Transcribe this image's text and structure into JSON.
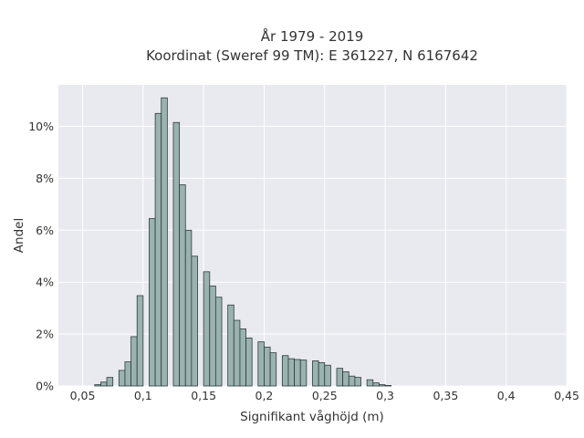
{
  "chart_data": {
    "type": "bar",
    "title_lines": [
      "År 1979 - 2019",
      "Koordinat (Sweref 99 TM): E 361227, N 6167642"
    ],
    "xlabel": "Signifikant våghöjd (m)",
    "ylabel": "Andel",
    "xlim": [
      0.03,
      0.45
    ],
    "ylim": [
      0,
      11.6
    ],
    "bin_width": 0.005,
    "x_ticks": [
      0.05,
      0.1,
      0.15,
      0.2,
      0.25,
      0.3,
      0.35,
      0.4,
      0.45
    ],
    "x_tick_labels": [
      "0,05",
      "0,1",
      "0,15",
      "0,2",
      "0,25",
      "0,3",
      "0,35",
      "0,4",
      "0,45"
    ],
    "y_ticks": [
      0,
      2,
      4,
      6,
      8,
      10
    ],
    "y_tick_labels": [
      "0%",
      "2%",
      "4%",
      "6%",
      "8%",
      "10%"
    ],
    "grid": true,
    "bar_color": "#9ab3b1",
    "bar_edge_color": "#2e3b3a",
    "background_color": "#e9e9f0",
    "bins": [
      {
        "x": 0.0625,
        "value": 0.05
      },
      {
        "x": 0.0675,
        "value": 0.15
      },
      {
        "x": 0.0725,
        "value": 0.33
      },
      {
        "x": 0.0825,
        "value": 0.6
      },
      {
        "x": 0.0875,
        "value": 0.93
      },
      {
        "x": 0.0925,
        "value": 1.9
      },
      {
        "x": 0.0975,
        "value": 3.48
      },
      {
        "x": 0.1075,
        "value": 6.45
      },
      {
        "x": 0.1125,
        "value": 10.5
      },
      {
        "x": 0.1175,
        "value": 11.1
      },
      {
        "x": 0.1275,
        "value": 10.15
      },
      {
        "x": 0.1325,
        "value": 7.75
      },
      {
        "x": 0.1375,
        "value": 6.0
      },
      {
        "x": 0.1425,
        "value": 5.0
      },
      {
        "x": 0.1525,
        "value": 4.4
      },
      {
        "x": 0.1575,
        "value": 3.85
      },
      {
        "x": 0.1625,
        "value": 3.42
      },
      {
        "x": 0.1725,
        "value": 3.12
      },
      {
        "x": 0.1775,
        "value": 2.53
      },
      {
        "x": 0.1825,
        "value": 2.2
      },
      {
        "x": 0.1875,
        "value": 1.85
      },
      {
        "x": 0.1975,
        "value": 1.7
      },
      {
        "x": 0.2025,
        "value": 1.5
      },
      {
        "x": 0.2075,
        "value": 1.28
      },
      {
        "x": 0.2175,
        "value": 1.17
      },
      {
        "x": 0.2225,
        "value": 1.05
      },
      {
        "x": 0.2275,
        "value": 1.02
      },
      {
        "x": 0.2325,
        "value": 1.0
      },
      {
        "x": 0.2425,
        "value": 0.97
      },
      {
        "x": 0.2475,
        "value": 0.9
      },
      {
        "x": 0.2525,
        "value": 0.8
      },
      {
        "x": 0.2625,
        "value": 0.68
      },
      {
        "x": 0.2675,
        "value": 0.55
      },
      {
        "x": 0.2725,
        "value": 0.38
      },
      {
        "x": 0.2775,
        "value": 0.33
      },
      {
        "x": 0.2875,
        "value": 0.24
      },
      {
        "x": 0.2925,
        "value": 0.12
      },
      {
        "x": 0.2975,
        "value": 0.05
      },
      {
        "x": 0.3025,
        "value": 0.02
      }
    ]
  }
}
